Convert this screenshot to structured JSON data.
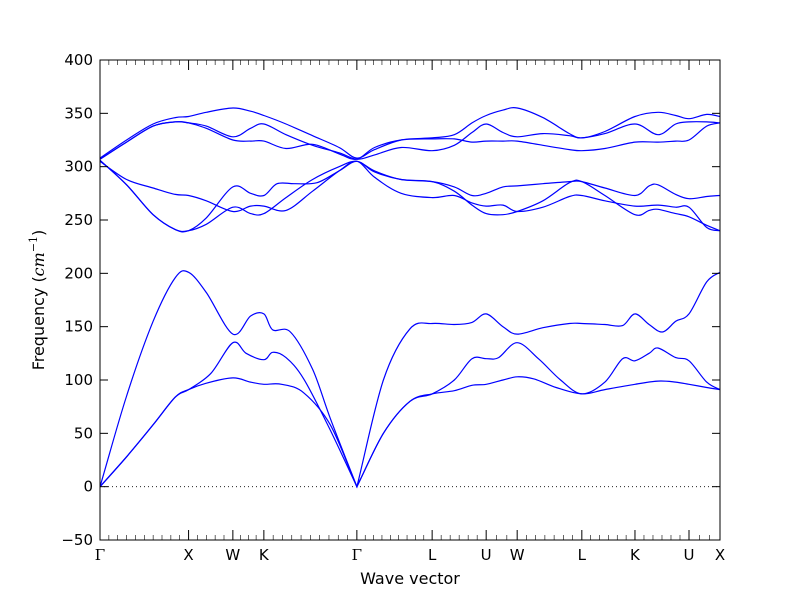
{
  "chart_data": {
    "type": "line",
    "title": "",
    "xlabel": "Wave vector",
    "ylabel": "Frequency",
    "ylabel_unit_base": "cm",
    "ylabel_unit_exp": "−1",
    "ylim": [
      -50,
      400
    ],
    "yticks": [
      -50,
      0,
      50,
      100,
      150,
      200,
      250,
      300,
      350,
      400
    ],
    "xlim": [
      0,
      7
    ],
    "zero_line": true,
    "grid": false,
    "legend": "none",
    "line_color": "#0000ff",
    "x_ticks": [
      {
        "label": "Γ",
        "x": 0
      },
      {
        "label": "X",
        "x": 1
      },
      {
        "label": "W",
        "x": 1.5
      },
      {
        "label": "K",
        "x": 1.85
      },
      {
        "label": "Γ",
        "x": 2.9
      },
      {
        "label": "L",
        "x": 3.75
      },
      {
        "label": "U",
        "x": 4.36
      },
      {
        "label": "W",
        "x": 4.71
      },
      {
        "label": "L",
        "x": 5.44
      },
      {
        "label": "K",
        "x": 6.04
      },
      {
        "label": "U",
        "x": 6.65
      },
      {
        "label": "X",
        "x": 7
      }
    ],
    "series": [
      {
        "values": [
          [
            0,
            0
          ],
          [
            0.3,
            28
          ],
          [
            0.6,
            58
          ],
          [
            0.85,
            84
          ],
          [
            1,
            91
          ],
          [
            1.2,
            97
          ],
          [
            1.5,
            102
          ],
          [
            1.7,
            98
          ],
          [
            1.85,
            96
          ],
          [
            2.05,
            96
          ],
          [
            2.3,
            88
          ],
          [
            2.6,
            58
          ],
          [
            2.9,
            0
          ],
          [
            3.2,
            50
          ],
          [
            3.5,
            80
          ],
          [
            3.75,
            87
          ],
          [
            4.0,
            90
          ],
          [
            4.2,
            95
          ],
          [
            4.36,
            96
          ],
          [
            4.55,
            100
          ],
          [
            4.71,
            103
          ],
          [
            4.9,
            101
          ],
          [
            5.15,
            93
          ],
          [
            5.44,
            87
          ],
          [
            5.7,
            91
          ],
          [
            6.04,
            96
          ],
          [
            6.3,
            99
          ],
          [
            6.5,
            98
          ],
          [
            6.65,
            96
          ],
          [
            6.85,
            93
          ],
          [
            7,
            91
          ]
        ]
      },
      {
        "values": [
          [
            0,
            0
          ],
          [
            0.3,
            28
          ],
          [
            0.6,
            58
          ],
          [
            0.85,
            84
          ],
          [
            1,
            91
          ],
          [
            1.25,
            106
          ],
          [
            1.5,
            135
          ],
          [
            1.65,
            125
          ],
          [
            1.85,
            119
          ],
          [
            1.95,
            126
          ],
          [
            2.1,
            121
          ],
          [
            2.3,
            101
          ],
          [
            2.6,
            53
          ],
          [
            2.9,
            0
          ],
          [
            3.2,
            50
          ],
          [
            3.5,
            80
          ],
          [
            3.75,
            87
          ],
          [
            4.0,
            100
          ],
          [
            4.2,
            120
          ],
          [
            4.36,
            120
          ],
          [
            4.5,
            121
          ],
          [
            4.71,
            135
          ],
          [
            4.95,
            120
          ],
          [
            5.2,
            100
          ],
          [
            5.44,
            87
          ],
          [
            5.7,
            98
          ],
          [
            5.9,
            120
          ],
          [
            6.04,
            118
          ],
          [
            6.2,
            125
          ],
          [
            6.3,
            130
          ],
          [
            6.5,
            121
          ],
          [
            6.65,
            118
          ],
          [
            6.85,
            98
          ],
          [
            7,
            91
          ]
        ]
      },
      {
        "values": [
          [
            0,
            0
          ],
          [
            0.3,
            85
          ],
          [
            0.6,
            155
          ],
          [
            0.85,
            196
          ],
          [
            1,
            201
          ],
          [
            1.2,
            182
          ],
          [
            1.5,
            143
          ],
          [
            1.7,
            160
          ],
          [
            1.85,
            162
          ],
          [
            1.95,
            147
          ],
          [
            2.15,
            145
          ],
          [
            2.4,
            110
          ],
          [
            2.6,
            64
          ],
          [
            2.9,
            0
          ],
          [
            3.2,
            100
          ],
          [
            3.5,
            148
          ],
          [
            3.75,
            153
          ],
          [
            4.0,
            152
          ],
          [
            4.2,
            154
          ],
          [
            4.36,
            162
          ],
          [
            4.55,
            150
          ],
          [
            4.71,
            143
          ],
          [
            5.0,
            149
          ],
          [
            5.3,
            153
          ],
          [
            5.44,
            153
          ],
          [
            5.7,
            152
          ],
          [
            5.9,
            151
          ],
          [
            6.04,
            162
          ],
          [
            6.2,
            152
          ],
          [
            6.35,
            145
          ],
          [
            6.5,
            155
          ],
          [
            6.65,
            162
          ],
          [
            6.85,
            192
          ],
          [
            7,
            201
          ]
        ]
      },
      {
        "values": [
          [
            0,
            306
          ],
          [
            0.3,
            283
          ],
          [
            0.6,
            255
          ],
          [
            0.85,
            241
          ],
          [
            1,
            240
          ],
          [
            1.2,
            252
          ],
          [
            1.5,
            281
          ],
          [
            1.7,
            275
          ],
          [
            1.85,
            273
          ],
          [
            2.0,
            284
          ],
          [
            2.2,
            284
          ],
          [
            2.45,
            285
          ],
          [
            2.7,
            296
          ],
          [
            2.9,
            305
          ],
          [
            3.1,
            295
          ],
          [
            3.4,
            288
          ],
          [
            3.75,
            286
          ],
          [
            4.0,
            281
          ],
          [
            4.2,
            273
          ],
          [
            4.36,
            275
          ],
          [
            4.55,
            281
          ],
          [
            4.71,
            282
          ],
          [
            5.0,
            284
          ],
          [
            5.3,
            286
          ],
          [
            5.44,
            286
          ],
          [
            5.7,
            280
          ],
          [
            6.04,
            273
          ],
          [
            6.2,
            282
          ],
          [
            6.3,
            283
          ],
          [
            6.5,
            274
          ],
          [
            6.65,
            270
          ],
          [
            6.85,
            272
          ],
          [
            7,
            273
          ]
        ]
      },
      {
        "values": [
          [
            0,
            306
          ],
          [
            0.3,
            283
          ],
          [
            0.6,
            255
          ],
          [
            0.85,
            241
          ],
          [
            1,
            240
          ],
          [
            1.2,
            246
          ],
          [
            1.5,
            262
          ],
          [
            1.7,
            256
          ],
          [
            1.85,
            256
          ],
          [
            2.1,
            271
          ],
          [
            2.4,
            288
          ],
          [
            2.7,
            300
          ],
          [
            2.9,
            305
          ],
          [
            3.1,
            296
          ],
          [
            3.4,
            288
          ],
          [
            3.75,
            286
          ],
          [
            4.0,
            277
          ],
          [
            4.2,
            264
          ],
          [
            4.36,
            256
          ],
          [
            4.55,
            255
          ],
          [
            4.71,
            258
          ],
          [
            5.0,
            268
          ],
          [
            5.3,
            285
          ],
          [
            5.44,
            286
          ],
          [
            5.7,
            273
          ],
          [
            6.04,
            255
          ],
          [
            6.2,
            259
          ],
          [
            6.3,
            260
          ],
          [
            6.5,
            256
          ],
          [
            6.65,
            253
          ],
          [
            6.85,
            245
          ],
          [
            7,
            240
          ]
        ]
      },
      {
        "values": [
          [
            0,
            305
          ],
          [
            0.3,
            288
          ],
          [
            0.6,
            280
          ],
          [
            0.85,
            274
          ],
          [
            1,
            273
          ],
          [
            1.2,
            268
          ],
          [
            1.5,
            258
          ],
          [
            1.7,
            263
          ],
          [
            1.85,
            263
          ],
          [
            2.1,
            259
          ],
          [
            2.4,
            277
          ],
          [
            2.7,
            296
          ],
          [
            2.9,
            305
          ],
          [
            3.1,
            290
          ],
          [
            3.4,
            275
          ],
          [
            3.75,
            271
          ],
          [
            4.0,
            273
          ],
          [
            4.2,
            266
          ],
          [
            4.36,
            263
          ],
          [
            4.55,
            264
          ],
          [
            4.71,
            258
          ],
          [
            5.0,
            262
          ],
          [
            5.3,
            272
          ],
          [
            5.44,
            273
          ],
          [
            5.7,
            268
          ],
          [
            6.04,
            263
          ],
          [
            6.3,
            264
          ],
          [
            6.5,
            262
          ],
          [
            6.65,
            262
          ],
          [
            6.85,
            243
          ],
          [
            7,
            240
          ]
        ]
      },
      {
        "values": [
          [
            0,
            307
          ],
          [
            0.3,
            323
          ],
          [
            0.6,
            338
          ],
          [
            0.85,
            342
          ],
          [
            1,
            341
          ],
          [
            1.2,
            336
          ],
          [
            1.5,
            325
          ],
          [
            1.7,
            324
          ],
          [
            1.85,
            324
          ],
          [
            2.1,
            317
          ],
          [
            2.4,
            321
          ],
          [
            2.7,
            312
          ],
          [
            2.9,
            307
          ],
          [
            3.1,
            318
          ],
          [
            3.4,
            325
          ],
          [
            3.75,
            326
          ],
          [
            4.0,
            326
          ],
          [
            4.2,
            323
          ],
          [
            4.36,
            324
          ],
          [
            4.55,
            324
          ],
          [
            4.71,
            324
          ],
          [
            5.0,
            320
          ],
          [
            5.3,
            316
          ],
          [
            5.44,
            315
          ],
          [
            5.7,
            317
          ],
          [
            6.04,
            323
          ],
          [
            6.3,
            323
          ],
          [
            6.5,
            324
          ],
          [
            6.65,
            325
          ],
          [
            6.85,
            338
          ],
          [
            7,
            341
          ]
        ]
      },
      {
        "values": [
          [
            0,
            307
          ],
          [
            0.3,
            323
          ],
          [
            0.6,
            338
          ],
          [
            0.85,
            342
          ],
          [
            1,
            341
          ],
          [
            1.2,
            338
          ],
          [
            1.5,
            328
          ],
          [
            1.7,
            336
          ],
          [
            1.85,
            340
          ],
          [
            2.1,
            330
          ],
          [
            2.4,
            320
          ],
          [
            2.7,
            313
          ],
          [
            2.9,
            307
          ],
          [
            3.1,
            311
          ],
          [
            3.4,
            318
          ],
          [
            3.75,
            315
          ],
          [
            4.0,
            320
          ],
          [
            4.2,
            332
          ],
          [
            4.36,
            340
          ],
          [
            4.55,
            332
          ],
          [
            4.71,
            328
          ],
          [
            5.0,
            331
          ],
          [
            5.3,
            329
          ],
          [
            5.44,
            327
          ],
          [
            5.7,
            331
          ],
          [
            6.04,
            340
          ],
          [
            6.3,
            330
          ],
          [
            6.5,
            340
          ],
          [
            6.65,
            342
          ],
          [
            6.85,
            342
          ],
          [
            7,
            341
          ]
        ]
      },
      {
        "values": [
          [
            0,
            308
          ],
          [
            0.3,
            325
          ],
          [
            0.6,
            340
          ],
          [
            0.85,
            346
          ],
          [
            1,
            347
          ],
          [
            1.2,
            351
          ],
          [
            1.5,
            355
          ],
          [
            1.7,
            352
          ],
          [
            1.85,
            348
          ],
          [
            2.1,
            340
          ],
          [
            2.4,
            329
          ],
          [
            2.7,
            318
          ],
          [
            2.9,
            308
          ],
          [
            3.1,
            316
          ],
          [
            3.4,
            325
          ],
          [
            3.75,
            327
          ],
          [
            4.0,
            330
          ],
          [
            4.2,
            341
          ],
          [
            4.36,
            348
          ],
          [
            4.55,
            353
          ],
          [
            4.71,
            355
          ],
          [
            5.0,
            346
          ],
          [
            5.3,
            331
          ],
          [
            5.44,
            327
          ],
          [
            5.7,
            333
          ],
          [
            6.04,
            347
          ],
          [
            6.3,
            351
          ],
          [
            6.5,
            348
          ],
          [
            6.65,
            345
          ],
          [
            6.85,
            349
          ],
          [
            7,
            347
          ]
        ]
      }
    ]
  }
}
